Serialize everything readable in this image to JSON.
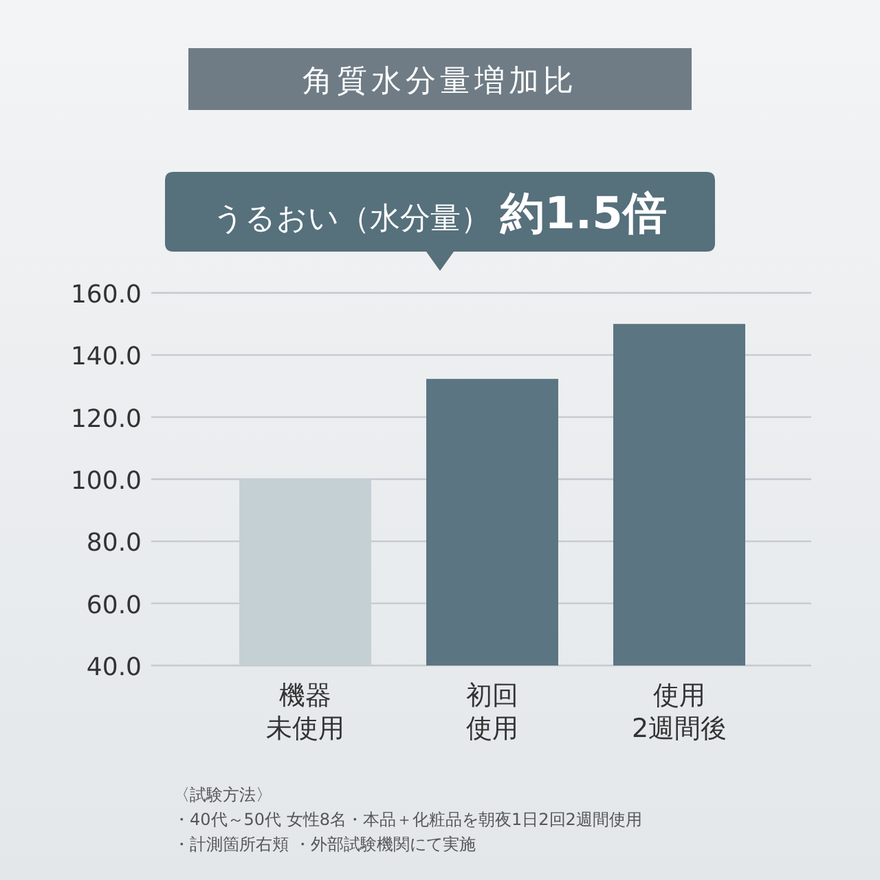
{
  "chart_data": {
    "type": "bar",
    "title": "角質水分量増加比",
    "subtitle": "うるおい（水分量） 約1.5倍",
    "categories": [
      "機器未使用",
      "初回使用",
      "使用2週間後"
    ],
    "values": [
      100,
      132.3,
      150
    ],
    "colors": [
      "#c5d0d5",
      "#5b7582",
      "#5b7582"
    ],
    "ylim": [
      40,
      160
    ],
    "yticks": [
      {
        "value": 40,
        "label": "40.0"
      },
      {
        "value": 60,
        "label": "60.0"
      },
      {
        "value": 80,
        "label": "80.0"
      },
      {
        "value": 100,
        "label": "100.0"
      },
      {
        "value": 120,
        "label": "120.0"
      },
      {
        "value": 140,
        "label": "140.0"
      },
      {
        "value": 160,
        "label": "160.0"
      }
    ],
    "grid": "y",
    "annotations": [
      "〈試験方法〉",
      "・40代～50代 女性8名・本品＋化粧品を朝夜1日2回2週間使用",
      "・計測箇所右頬 ・外部試験機関にて実施"
    ]
  }
}
